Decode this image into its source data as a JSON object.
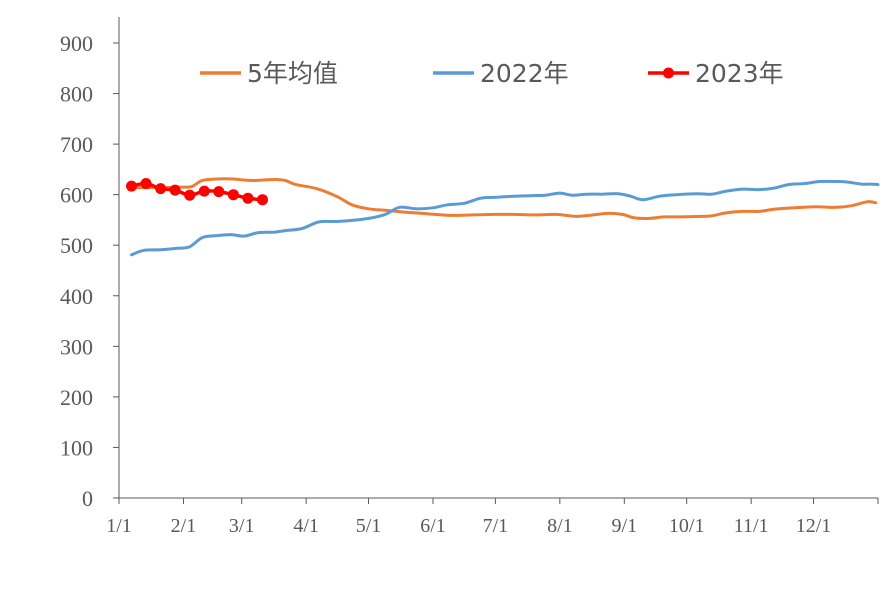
{
  "chart_data": {
    "type": "line",
    "title": "",
    "xlabel": "",
    "ylabel": "",
    "ylim": [
      0,
      900
    ],
    "y_ticks": [
      0,
      100,
      200,
      300,
      400,
      500,
      600,
      700,
      800,
      900
    ],
    "x_ticks": [
      "1/1",
      "2/1",
      "3/1",
      "4/1",
      "5/1",
      "6/1",
      "7/1",
      "8/1",
      "9/1",
      "10/1",
      "11/1",
      "12/1"
    ],
    "x_tick_days": [
      0,
      31,
      59,
      90,
      120,
      151,
      181,
      212,
      243,
      273,
      304,
      334
    ],
    "x_range_days": [
      0,
      365
    ],
    "grid": false,
    "legend_position": "top",
    "series": [
      {
        "name": "5年均值",
        "color": "#ED7D31",
        "markers": false,
        "points": [
          [
            5,
            614
          ],
          [
            12,
            614
          ],
          [
            20,
            614
          ],
          [
            30,
            615
          ],
          [
            35,
            616
          ],
          [
            40,
            628
          ],
          [
            47,
            631
          ],
          [
            55,
            631
          ],
          [
            60,
            629
          ],
          [
            65,
            628
          ],
          [
            75,
            630
          ],
          [
            80,
            628
          ],
          [
            85,
            620
          ],
          [
            95,
            612
          ],
          [
            105,
            596
          ],
          [
            112,
            580
          ],
          [
            120,
            572
          ],
          [
            128,
            569
          ],
          [
            136,
            566
          ],
          [
            146,
            563
          ],
          [
            152,
            561
          ],
          [
            160,
            559
          ],
          [
            170,
            560
          ],
          [
            180,
            561
          ],
          [
            190,
            561
          ],
          [
            200,
            560
          ],
          [
            210,
            561
          ],
          [
            215,
            559
          ],
          [
            220,
            557
          ],
          [
            226,
            559
          ],
          [
            235,
            563
          ],
          [
            242,
            561
          ],
          [
            248,
            554
          ],
          [
            255,
            553
          ],
          [
            262,
            556
          ],
          [
            270,
            556
          ],
          [
            280,
            557
          ],
          [
            285,
            558
          ],
          [
            292,
            564
          ],
          [
            300,
            567
          ],
          [
            308,
            567
          ],
          [
            315,
            571
          ],
          [
            325,
            574
          ],
          [
            335,
            576
          ],
          [
            345,
            575
          ],
          [
            352,
            578
          ],
          [
            360,
            586
          ],
          [
            364,
            584
          ]
        ]
      },
      {
        "name": "2022年",
        "color": "#5B9BD5",
        "markers": false,
        "points": [
          [
            6,
            481
          ],
          [
            12,
            490
          ],
          [
            20,
            491
          ],
          [
            28,
            494
          ],
          [
            34,
            497
          ],
          [
            40,
            515
          ],
          [
            47,
            519
          ],
          [
            54,
            521
          ],
          [
            60,
            518
          ],
          [
            67,
            525
          ],
          [
            75,
            526
          ],
          [
            80,
            529
          ],
          [
            88,
            533
          ],
          [
            96,
            546
          ],
          [
            104,
            547
          ],
          [
            112,
            549
          ],
          [
            120,
            553
          ],
          [
            128,
            561
          ],
          [
            135,
            575
          ],
          [
            143,
            572
          ],
          [
            151,
            574
          ],
          [
            158,
            580
          ],
          [
            166,
            583
          ],
          [
            174,
            593
          ],
          [
            182,
            595
          ],
          [
            190,
            597
          ],
          [
            198,
            598
          ],
          [
            205,
            599
          ],
          [
            212,
            603
          ],
          [
            218,
            599
          ],
          [
            225,
            601
          ],
          [
            232,
            601
          ],
          [
            240,
            602
          ],
          [
            246,
            597
          ],
          [
            252,
            590
          ],
          [
            260,
            597
          ],
          [
            268,
            600
          ],
          [
            278,
            602
          ],
          [
            285,
            601
          ],
          [
            292,
            607
          ],
          [
            300,
            611
          ],
          [
            308,
            610
          ],
          [
            315,
            613
          ],
          [
            322,
            620
          ],
          [
            330,
            622
          ],
          [
            337,
            626
          ],
          [
            345,
            626
          ],
          [
            350,
            625
          ],
          [
            357,
            621
          ],
          [
            362,
            621
          ],
          [
            365,
            620
          ]
        ]
      },
      {
        "name": "2023年",
        "color": "#FF0000",
        "markers": true,
        "points": [
          [
            6,
            617
          ],
          [
            13,
            622
          ],
          [
            20,
            612
          ],
          [
            27,
            609
          ],
          [
            34,
            599
          ],
          [
            41,
            607
          ],
          [
            48,
            606
          ],
          [
            55,
            600
          ],
          [
            62,
            593
          ],
          [
            69,
            590
          ]
        ]
      }
    ]
  }
}
